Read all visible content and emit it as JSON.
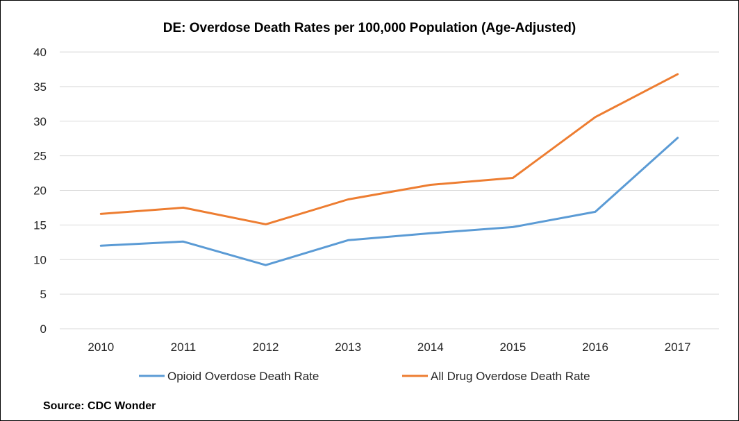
{
  "chart_data": {
    "type": "line",
    "title": "DE: Overdose Death Rates per 100,000 Population (Age-Adjusted)",
    "xlabel": "",
    "ylabel": "",
    "categories": [
      "2010",
      "2011",
      "2012",
      "2013",
      "2014",
      "2015",
      "2016",
      "2017"
    ],
    "ylim": [
      0,
      40
    ],
    "yticks": [
      "0",
      "5",
      "10",
      "15",
      "20",
      "25",
      "30",
      "35",
      "40"
    ],
    "grid": true,
    "legend_position": "bottom",
    "series": [
      {
        "name": "Opioid Overdose Death Rate",
        "color": "#5B9BD5",
        "values": [
          12.0,
          12.6,
          9.2,
          12.8,
          13.8,
          14.7,
          16.9,
          27.6
        ]
      },
      {
        "name": "All Drug Overdose Death Rate",
        "color": "#ED7D31",
        "values": [
          16.6,
          17.5,
          15.1,
          18.7,
          20.8,
          21.8,
          30.6,
          36.8
        ]
      }
    ]
  },
  "source": "Source: CDC Wonder",
  "colors": {
    "gridline": "#D9D9D9",
    "text": "#262626"
  }
}
